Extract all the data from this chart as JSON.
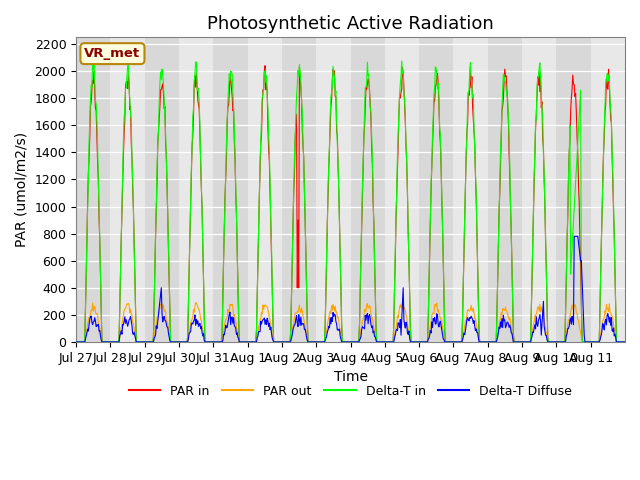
{
  "title": "Photosynthetic Active Radiation",
  "ylabel": "PAR (umol/m2/s)",
  "xlabel": "Time",
  "site_label": "VR_met",
  "ylim": [
    0,
    2250
  ],
  "legend_entries": [
    "PAR in",
    "PAR out",
    "Delta-T in",
    "Delta-T Diffuse"
  ],
  "legend_colors": [
    "red",
    "orange",
    "lime",
    "blue"
  ],
  "bg_even": "#d8d8d8",
  "bg_odd": "#e8e8e8",
  "grid_color": "white",
  "x_tick_labels": [
    "Jul 27",
    "Jul 28",
    "Jul 29",
    "Jul 30",
    "Jul 31",
    "Aug 1",
    "Aug 2",
    "Aug 3",
    "Aug 4",
    "Aug 5",
    "Aug 6",
    "Aug 7",
    "Aug 8",
    "Aug 9",
    "Aug 10",
    "Aug 11"
  ],
  "yticks": [
    0,
    200,
    400,
    600,
    800,
    1000,
    1200,
    1400,
    1600,
    1800,
    2000,
    2200
  ],
  "title_fontsize": 13,
  "label_fontsize": 10,
  "tick_fontsize": 9,
  "days": 16,
  "pts_per_day": 48
}
